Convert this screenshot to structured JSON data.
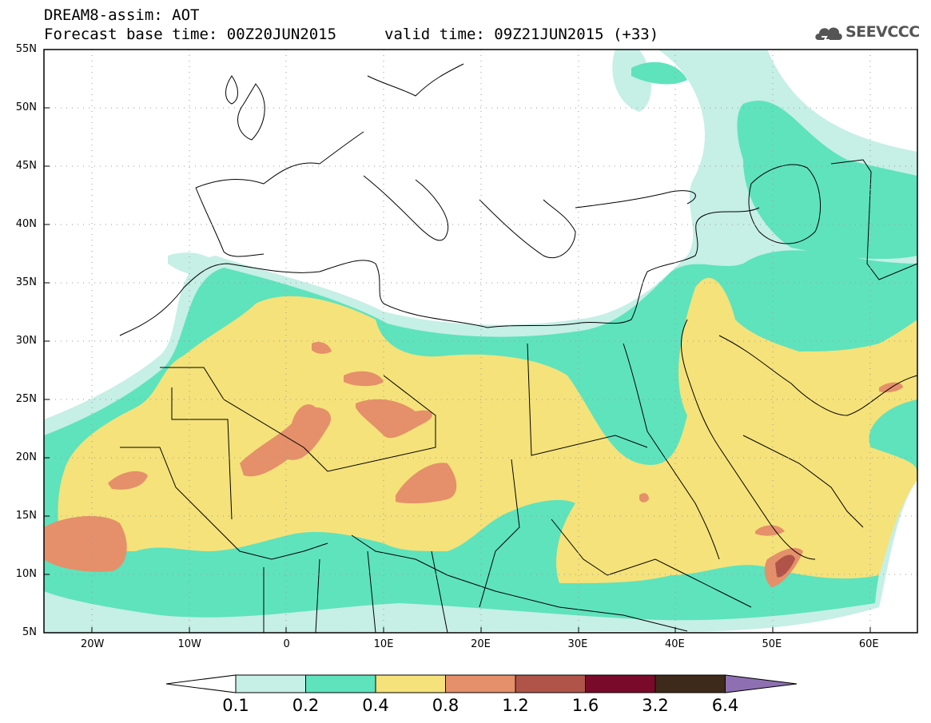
{
  "header": {
    "line1": "DREAM8-assim: AOT",
    "line2": "Forecast base time: 00Z20JUN2015",
    "valid": "valid time: 09Z21JUN2015 (+33)"
  },
  "logo": {
    "text": "SEEVCCC",
    "icon": "cloud-icon",
    "color": "#555555"
  },
  "axes": {
    "lat_labels": [
      "55N",
      "50N",
      "45N",
      "40N",
      "35N",
      "30N",
      "25N",
      "20N",
      "15N",
      "10N",
      "5N"
    ],
    "lon_labels": [
      "20W",
      "10W",
      "0",
      "10E",
      "20E",
      "30E",
      "40E",
      "50E",
      "60E"
    ],
    "lat_range": [
      5,
      55
    ],
    "lon_range": [
      -25,
      65
    ],
    "grid": "dotted"
  },
  "colorbar": {
    "labels": [
      "0.1",
      "0.2",
      "0.4",
      "0.8",
      "1.2",
      "1.6",
      "3.2",
      "6.4"
    ],
    "colors": [
      "#ffffff",
      "#c6efe6",
      "#5ee3bd",
      "#f5e27a",
      "#e5906a",
      "#b0544a",
      "#7a0a2a",
      "#3e2a1a",
      "#8e70b2"
    ]
  }
}
